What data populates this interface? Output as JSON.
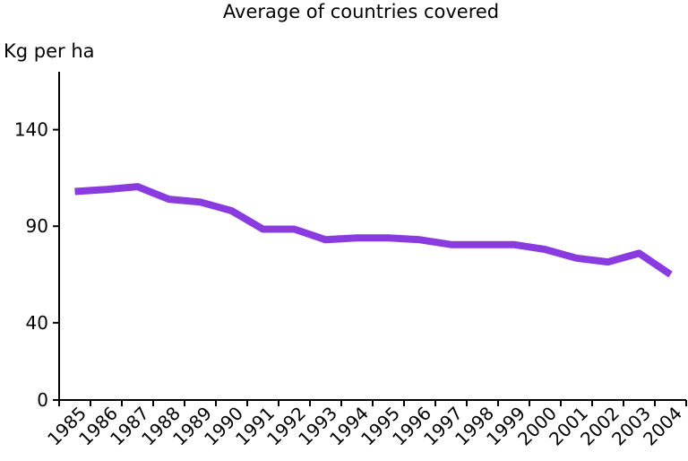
{
  "chart_data": {
    "type": "line",
    "title": "Average of countries covered",
    "ylabel": "Kg per ha",
    "xlabel": "",
    "ylim": [
      0,
      170
    ],
    "yticks": [
      0,
      40,
      90,
      140
    ],
    "categories": [
      "1985",
      "1986",
      "1987",
      "1988",
      "1989",
      "1990",
      "1991",
      "1992",
      "1993",
      "1994",
      "1995",
      "1996",
      "1997",
      "1998",
      "1999",
      "2000",
      "2001",
      "2002",
      "2003",
      "2004"
    ],
    "series": [
      {
        "values": [
          108,
          109,
          110.5,
          104,
          102.5,
          98,
          88.5,
          88.5,
          83,
          84,
          84,
          83,
          80.5,
          80.5,
          80.5,
          78,
          73.5,
          71.5,
          76,
          65
        ],
        "color": "#8a3be0"
      }
    ],
    "grid": false,
    "legend": "none"
  }
}
